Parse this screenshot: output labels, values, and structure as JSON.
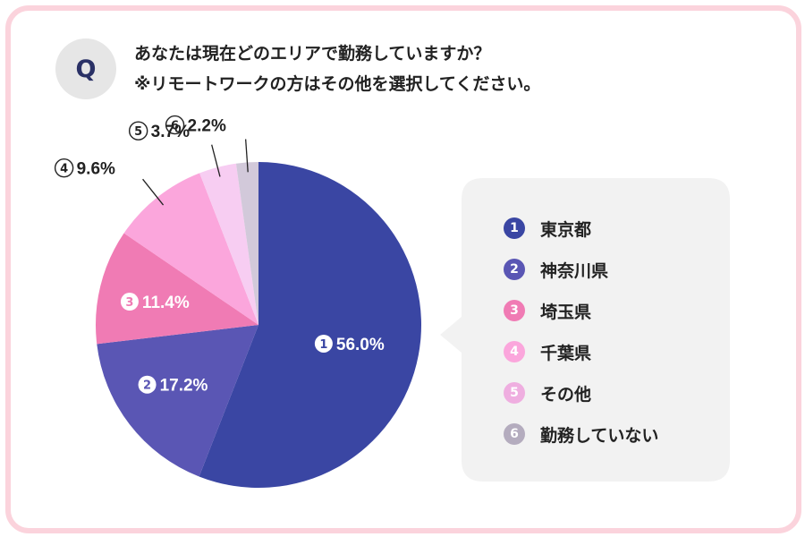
{
  "question": {
    "badge": "Q",
    "line1": "あなたは現在どのエリアで勤務していますか？",
    "line2": "※リモートワークの方はその他を選択してください。"
  },
  "chart_data": {
    "type": "pie",
    "categories": [
      "東京都",
      "神奈川県",
      "埼玉県",
      "千葉県",
      "その他",
      "勤務していない"
    ],
    "values": [
      56.0,
      17.2,
      11.4,
      9.6,
      3.7,
      2.2
    ],
    "unit": "%",
    "data_labels": [
      "56.0%",
      "17.2%",
      "11.4%",
      "9.6%",
      "3.7%",
      "2.2%"
    ],
    "numbers": [
      "1",
      "2",
      "3",
      "4",
      "5",
      "6"
    ],
    "colors": [
      "#3a46a3",
      "#5a56b4",
      "#f07bb4",
      "#fba6dc",
      "#f7cdf2",
      "#d2c9da"
    ],
    "start_angle": "12 o'clock",
    "direction": "clockwise",
    "legend_position": "right"
  }
}
